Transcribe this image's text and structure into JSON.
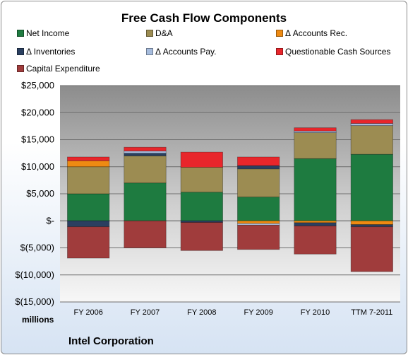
{
  "chart_data": {
    "type": "bar",
    "stacked": true,
    "title": "Free Cash Flow Components",
    "categories": [
      "FY 2006",
      "FY 2007",
      "FY 2008",
      "FY 2009",
      "FY 2010",
      "TTM 7-2011"
    ],
    "ylabel": "millions",
    "ylim": [
      -15000,
      25000
    ],
    "yticks": [
      -15000,
      -10000,
      -5000,
      0,
      5000,
      10000,
      15000,
      20000,
      25000
    ],
    "ytick_labels": [
      "$(15,000)",
      "$(10,000)",
      "$(5,000)",
      "$-",
      "$5,000",
      "$10,000",
      "$15,000",
      "$20,000",
      "$25,000"
    ],
    "grid": true,
    "legend_position": "top",
    "series": [
      {
        "name": "Net Income",
        "color": "#1e7b40",
        "values": [
          5000,
          7000,
          5300,
          4400,
          11500,
          12300
        ]
      },
      {
        "name": "D&A",
        "color": "#9c8c52",
        "values": [
          5000,
          5000,
          4600,
          5200,
          4800,
          5300
        ]
      },
      {
        "name": "Δ Accounts Rec.",
        "color": "#ee8a12",
        "values": [
          1100,
          0,
          0,
          -500,
          -350,
          -700
        ]
      },
      {
        "name": "Δ Inventories",
        "color": "#2a3f60",
        "values": [
          -1100,
          500,
          -300,
          600,
          -600,
          -400
        ]
      },
      {
        "name": "Δ Accounts Pay.",
        "color": "#a6bcdd",
        "values": [
          0,
          400,
          0,
          -300,
          300,
          400
        ]
      },
      {
        "name": "Questionable Cash Sources",
        "color": "#e8262b",
        "values": [
          700,
          700,
          2800,
          1600,
          600,
          700
        ]
      },
      {
        "name": "Capital Expenditure",
        "color": "#a03c3c",
        "values": [
          -5800,
          -5000,
          -5200,
          -4500,
          -5200,
          -8300
        ]
      }
    ]
  },
  "footer": "Intel Corporation",
  "units_label": "millions"
}
